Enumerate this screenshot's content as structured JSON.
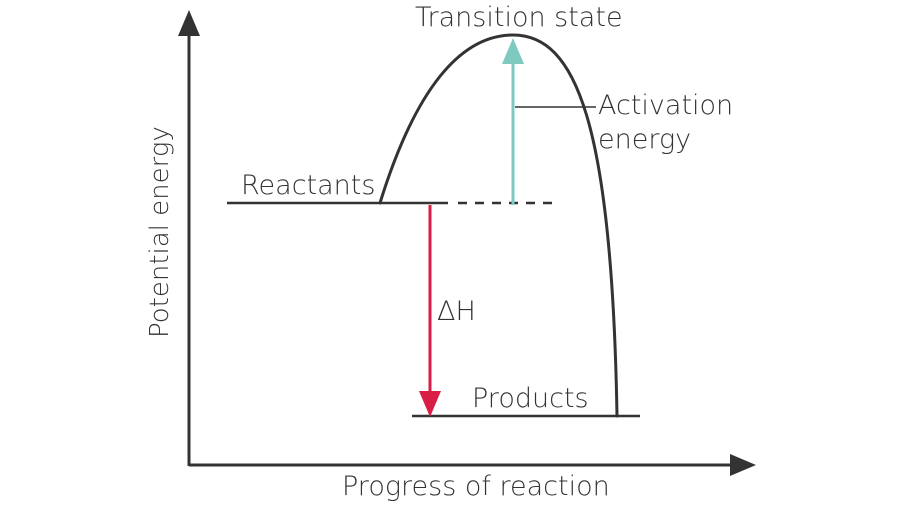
{
  "labels": {
    "transition_state": "Transition state",
    "activation_energy_line1": "Activation",
    "activation_energy_line2": "energy",
    "reactants": "Reactants",
    "products": "Products",
    "delta_h": "ΔH",
    "y_axis": "Potential energy",
    "x_axis": "Progress of reaction"
  },
  "colors": {
    "ink": "#333333",
    "activation_arrow": "#7fcac0",
    "enthalpy_arrow": "#d81e45"
  }
}
